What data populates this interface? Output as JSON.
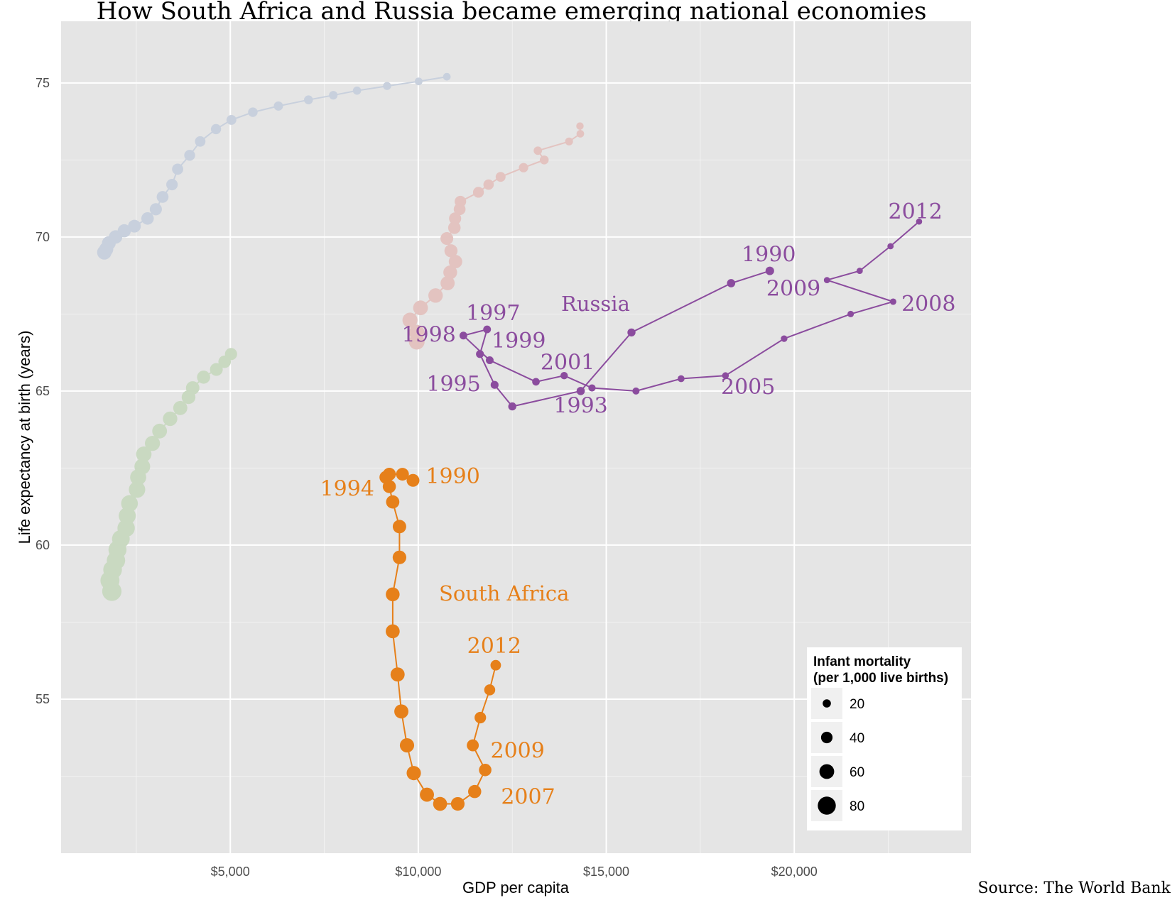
{
  "chart_data": {
    "type": "scatter",
    "title": "How South Africa and Russia became emerging national economies",
    "xlabel": "GDP per capita",
    "ylabel": "Life expectancy at birth (years)",
    "source": "Source: The World Bank",
    "xlim": [
      500,
      24700
    ],
    "ylim": [
      50.0,
      77.0
    ],
    "x_ticks": [
      5000,
      10000,
      15000,
      20000
    ],
    "x_tick_labels": [
      "$5,000",
      "$10,000",
      "$15,000",
      "$20,000"
    ],
    "y_ticks": [
      55,
      60,
      65,
      70,
      75
    ],
    "y_tick_labels": [
      "55",
      "60",
      "65",
      "70",
      "75"
    ],
    "grid": true,
    "legend": {
      "title_line1": "Infant mortality",
      "title_line2": "(per 1,000 live births)",
      "placement": "bottom-right",
      "entries": [
        {
          "label": "20",
          "value": 20
        },
        {
          "label": "40",
          "value": 40
        },
        {
          "label": "60",
          "value": 60
        },
        {
          "label": "80",
          "value": 80
        }
      ]
    },
    "series": [
      {
        "name": "South Africa",
        "color": "#e6801a",
        "label_at": [
          10550,
          58.2
        ],
        "points": [
          {
            "x": 9860,
            "y": 62.1,
            "im": 48
          },
          {
            "x": 9580,
            "y": 62.3,
            "im": 48
          },
          {
            "x": 9230,
            "y": 62.3,
            "im": 49
          },
          {
            "x": 9140,
            "y": 62.2,
            "im": 49
          },
          {
            "x": 9230,
            "y": 61.9,
            "im": 50
          },
          {
            "x": 9320,
            "y": 61.4,
            "im": 51
          },
          {
            "x": 9500,
            "y": 60.6,
            "im": 52
          },
          {
            "x": 9500,
            "y": 59.6,
            "im": 53
          },
          {
            "x": 9320,
            "y": 58.4,
            "im": 54
          },
          {
            "x": 9320,
            "y": 57.2,
            "im": 55
          },
          {
            "x": 9450,
            "y": 55.8,
            "im": 56
          },
          {
            "x": 9550,
            "y": 54.6,
            "im": 56
          },
          {
            "x": 9700,
            "y": 53.5,
            "im": 57
          },
          {
            "x": 9880,
            "y": 52.6,
            "im": 57
          },
          {
            "x": 10230,
            "y": 51.9,
            "im": 56
          },
          {
            "x": 10580,
            "y": 51.6,
            "im": 55
          },
          {
            "x": 11050,
            "y": 51.6,
            "im": 53
          },
          {
            "x": 11500,
            "y": 52.0,
            "im": 50
          },
          {
            "x": 11780,
            "y": 52.7,
            "im": 46
          },
          {
            "x": 11450,
            "y": 53.5,
            "im": 43
          },
          {
            "x": 11650,
            "y": 54.4,
            "im": 40
          },
          {
            "x": 11900,
            "y": 55.3,
            "im": 37
          },
          {
            "x": 12060,
            "y": 56.1,
            "im": 34
          }
        ],
        "year_labels": [
          {
            "text": "1990",
            "x": 10200,
            "y": 62.0,
            "anchor": "start"
          },
          {
            "text": "1994",
            "x": 8830,
            "y": 61.6,
            "anchor": "end"
          },
          {
            "text": "2012",
            "x": 11300,
            "y": 56.5,
            "anchor": "start"
          },
          {
            "text": "2009",
            "x": 11920,
            "y": 53.1,
            "anchor": "start"
          },
          {
            "text": "2007",
            "x": 12200,
            "y": 51.6,
            "anchor": "start"
          }
        ]
      },
      {
        "name": "Russia",
        "color": "#8b4c9e",
        "label_at": [
          13800,
          67.6
        ],
        "points": [
          {
            "x": 19350,
            "y": 68.9,
            "im": 22
          },
          {
            "x": 18320,
            "y": 68.5,
            "im": 20
          },
          {
            "x": 15670,
            "y": 66.9,
            "im": 19
          },
          {
            "x": 14320,
            "y": 65.0,
            "im": 20
          },
          {
            "x": 12500,
            "y": 64.5,
            "im": 19
          },
          {
            "x": 12030,
            "y": 65.2,
            "im": 18
          },
          {
            "x": 11640,
            "y": 66.2,
            "im": 18
          },
          {
            "x": 11830,
            "y": 67.0,
            "im": 17
          },
          {
            "x": 11200,
            "y": 66.8,
            "im": 17
          },
          {
            "x": 11900,
            "y": 66.0,
            "im": 17
          },
          {
            "x": 13130,
            "y": 65.3,
            "im": 16
          },
          {
            "x": 13880,
            "y": 65.5,
            "im": 15
          },
          {
            "x": 14620,
            "y": 65.1,
            "im": 14
          },
          {
            "x": 15790,
            "y": 65.0,
            "im": 13
          },
          {
            "x": 16990,
            "y": 65.4,
            "im": 12
          },
          {
            "x": 18170,
            "y": 65.5,
            "im": 11
          },
          {
            "x": 19730,
            "y": 66.7,
            "im": 10
          },
          {
            "x": 21500,
            "y": 67.5,
            "im": 9
          },
          {
            "x": 22630,
            "y": 67.9,
            "im": 9
          },
          {
            "x": 20870,
            "y": 68.6,
            "im": 8
          },
          {
            "x": 21740,
            "y": 68.9,
            "im": 8
          },
          {
            "x": 22560,
            "y": 69.7,
            "im": 8
          },
          {
            "x": 23320,
            "y": 70.5,
            "im": 7
          }
        ],
        "year_labels": [
          {
            "text": "1990",
            "x": 18600,
            "y": 69.2,
            "anchor": "start"
          },
          {
            "text": "1993",
            "x": 13600,
            "y": 64.3,
            "anchor": "start"
          },
          {
            "text": "1995",
            "x": 11660,
            "y": 65.0,
            "anchor": "end"
          },
          {
            "text": "1997",
            "x": 11270,
            "y": 67.3,
            "anchor": "start"
          },
          {
            "text": "1998",
            "x": 11000,
            "y": 66.6,
            "anchor": "end"
          },
          {
            "text": "1999",
            "x": 11950,
            "y": 66.4,
            "anchor": "start"
          },
          {
            "text": "2001",
            "x": 13250,
            "y": 65.7,
            "anchor": "start"
          },
          {
            "text": "2005",
            "x": 18050,
            "y": 64.9,
            "anchor": "start"
          },
          {
            "text": "2008",
            "x": 22850,
            "y": 67.6,
            "anchor": "start"
          },
          {
            "text": "2009",
            "x": 20700,
            "y": 68.1,
            "anchor": "end"
          },
          {
            "text": "2012",
            "x": 22500,
            "y": 70.6,
            "anchor": "start"
          }
        ]
      },
      {
        "color": "#c8d0dd",
        "points": [
          {
            "x": 1650,
            "y": 69.5,
            "im": 58
          },
          {
            "x": 1700,
            "y": 69.6,
            "im": 56
          },
          {
            "x": 1770,
            "y": 69.8,
            "im": 54
          },
          {
            "x": 1950,
            "y": 70.0,
            "im": 52
          },
          {
            "x": 2180,
            "y": 70.2,
            "im": 50
          },
          {
            "x": 2450,
            "y": 70.35,
            "im": 48
          },
          {
            "x": 2800,
            "y": 70.6,
            "im": 46
          },
          {
            "x": 3020,
            "y": 70.9,
            "im": 44
          },
          {
            "x": 3200,
            "y": 71.3,
            "im": 42
          },
          {
            "x": 3450,
            "y": 71.7,
            "im": 40
          },
          {
            "x": 3600,
            "y": 72.2,
            "im": 38
          },
          {
            "x": 3920,
            "y": 72.65,
            "im": 36
          },
          {
            "x": 4200,
            "y": 73.1,
            "im": 34
          },
          {
            "x": 4620,
            "y": 73.5,
            "im": 32
          },
          {
            "x": 5030,
            "y": 73.8,
            "im": 30
          },
          {
            "x": 5600,
            "y": 74.05,
            "im": 28
          },
          {
            "x": 6280,
            "y": 74.25,
            "im": 26
          },
          {
            "x": 7080,
            "y": 74.45,
            "im": 24
          },
          {
            "x": 7740,
            "y": 74.6,
            "im": 22
          },
          {
            "x": 8370,
            "y": 74.75,
            "im": 20
          },
          {
            "x": 9170,
            "y": 74.9,
            "im": 19
          },
          {
            "x": 10010,
            "y": 75.05,
            "im": 17
          },
          {
            "x": 10760,
            "y": 75.2,
            "im": 16
          }
        ]
      },
      {
        "color": "#e3c3c0",
        "points": [
          {
            "x": 9960,
            "y": 66.6,
            "im": 66
          },
          {
            "x": 9960,
            "y": 66.9,
            "im": 64
          },
          {
            "x": 9780,
            "y": 67.3,
            "im": 62
          },
          {
            "x": 10060,
            "y": 67.7,
            "im": 60
          },
          {
            "x": 10460,
            "y": 68.1,
            "im": 58
          },
          {
            "x": 10780,
            "y": 68.5,
            "im": 56
          },
          {
            "x": 10850,
            "y": 68.85,
            "im": 54
          },
          {
            "x": 10990,
            "y": 69.2,
            "im": 52
          },
          {
            "x": 10870,
            "y": 69.55,
            "im": 50
          },
          {
            "x": 10760,
            "y": 69.95,
            "im": 48
          },
          {
            "x": 10960,
            "y": 70.3,
            "im": 46
          },
          {
            "x": 10980,
            "y": 70.6,
            "im": 44
          },
          {
            "x": 11100,
            "y": 70.9,
            "im": 42
          },
          {
            "x": 11120,
            "y": 71.15,
            "im": 40
          },
          {
            "x": 11600,
            "y": 71.45,
            "im": 36
          },
          {
            "x": 11870,
            "y": 71.7,
            "im": 33
          },
          {
            "x": 12190,
            "y": 71.95,
            "im": 30
          },
          {
            "x": 12800,
            "y": 72.25,
            "im": 27
          },
          {
            "x": 13350,
            "y": 72.5,
            "im": 24
          },
          {
            "x": 13180,
            "y": 72.8,
            "im": 21
          },
          {
            "x": 14010,
            "y": 73.1,
            "im": 18
          },
          {
            "x": 14310,
            "y": 73.35,
            "im": 16
          },
          {
            "x": 14300,
            "y": 73.6,
            "im": 15
          }
        ]
      },
      {
        "color": "#c9d9c1",
        "points": [
          {
            "x": 1850,
            "y": 58.5,
            "im": 88
          },
          {
            "x": 1800,
            "y": 58.85,
            "im": 86
          },
          {
            "x": 1870,
            "y": 59.2,
            "im": 84
          },
          {
            "x": 1960,
            "y": 59.5,
            "im": 82
          },
          {
            "x": 2000,
            "y": 59.85,
            "im": 80
          },
          {
            "x": 2090,
            "y": 60.2,
            "im": 78
          },
          {
            "x": 2230,
            "y": 60.55,
            "im": 76
          },
          {
            "x": 2260,
            "y": 60.95,
            "im": 74
          },
          {
            "x": 2320,
            "y": 61.35,
            "im": 72
          },
          {
            "x": 2520,
            "y": 61.8,
            "im": 70
          },
          {
            "x": 2550,
            "y": 62.2,
            "im": 68
          },
          {
            "x": 2660,
            "y": 62.55,
            "im": 66
          },
          {
            "x": 2700,
            "y": 62.95,
            "im": 64
          },
          {
            "x": 2930,
            "y": 63.3,
            "im": 62
          },
          {
            "x": 3120,
            "y": 63.7,
            "im": 60
          },
          {
            "x": 3400,
            "y": 64.1,
            "im": 58
          },
          {
            "x": 3670,
            "y": 64.45,
            "im": 56
          },
          {
            "x": 3890,
            "y": 64.8,
            "im": 54
          },
          {
            "x": 4000,
            "y": 65.1,
            "im": 52
          },
          {
            "x": 4290,
            "y": 65.45,
            "im": 50
          },
          {
            "x": 4630,
            "y": 65.7,
            "im": 48
          },
          {
            "x": 4850,
            "y": 65.95,
            "im": 46
          },
          {
            "x": 5020,
            "y": 66.2,
            "im": 44
          }
        ]
      }
    ]
  }
}
